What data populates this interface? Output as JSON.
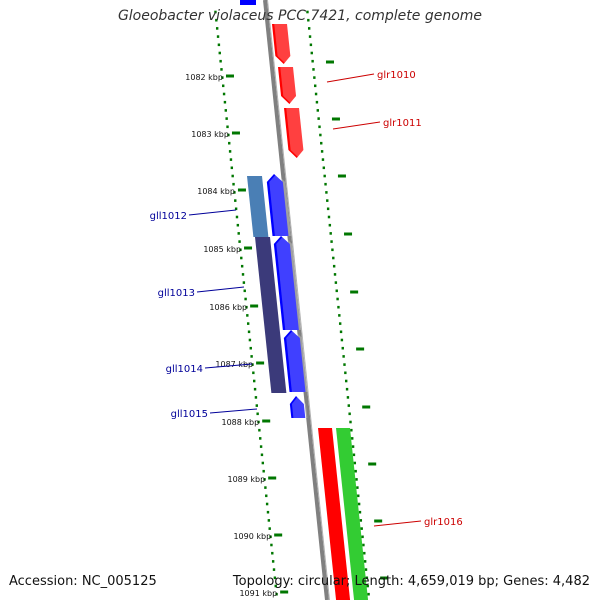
{
  "title": "Gloeobacter violaceus PCC 7421, complete genome",
  "footer": {
    "accession": "Accession: NC_005125",
    "summary": "Topology: circular; Length: 4,659,019 bp; Genes: 4,482"
  },
  "ruler": {
    "ticks": [
      "1082 kbp",
      "1083 kbp",
      "1084 kbp",
      "1085 kbp",
      "1086 kbp",
      "1087 kbp",
      "1088 kbp",
      "1089 kbp",
      "1090 kbp",
      "1091 kbp"
    ]
  },
  "genes": [
    {
      "name": "glr1010",
      "strand": "forward",
      "color": "#cc0000"
    },
    {
      "name": "glr1011",
      "strand": "forward",
      "color": "#cc0000"
    },
    {
      "name": "gll1012",
      "strand": "reverse",
      "color": "#000099"
    },
    {
      "name": "gll1013",
      "strand": "reverse",
      "color": "#000099"
    },
    {
      "name": "gll1014",
      "strand": "reverse",
      "color": "#000099"
    },
    {
      "name": "gll1015",
      "strand": "reverse",
      "color": "#000099"
    },
    {
      "name": "glr1016",
      "strand": "forward",
      "color": "#cc0000"
    }
  ],
  "colors": {
    "forward_cds": "#ff0000",
    "reverse_cds": "#0000ff",
    "rna_feature": "#33cc33",
    "backbone": "#808080",
    "ruler_dots": "#007700",
    "operon_light": "#4a7fb5",
    "operon_dark": "#3b3a7a"
  }
}
